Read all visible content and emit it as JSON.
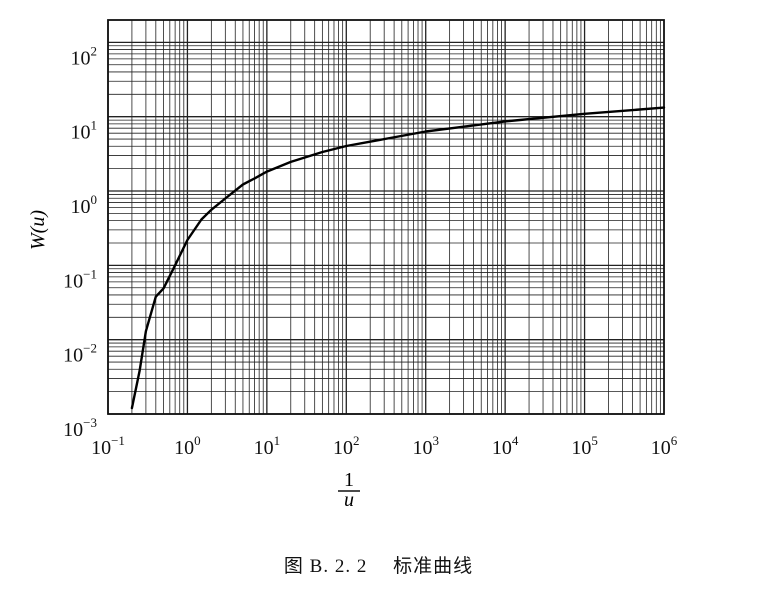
{
  "chart_data": {
    "type": "line",
    "x_scale": "log",
    "y_scale": "log",
    "xlim": [
      0.1,
      1000000
    ],
    "ylim": [
      0.001,
      200
    ],
    "grid": true,
    "xlabel_num": "1",
    "xlabel_den": "u",
    "ylabel": "W(u)",
    "x_ticks": [
      {
        "value": 0.1,
        "base": "10",
        "exp": "−1"
      },
      {
        "value": 1,
        "base": "10",
        "exp": "0"
      },
      {
        "value": 10,
        "base": "10",
        "exp": "1"
      },
      {
        "value": 100,
        "base": "10",
        "exp": "2"
      },
      {
        "value": 1000,
        "base": "10",
        "exp": "3"
      },
      {
        "value": 10000,
        "base": "10",
        "exp": "4"
      },
      {
        "value": 100000,
        "base": "10",
        "exp": "5"
      },
      {
        "value": 1000000,
        "base": "10",
        "exp": "6"
      }
    ],
    "y_ticks": [
      {
        "value": 0.001,
        "base": "10",
        "exp": "−3"
      },
      {
        "value": 0.01,
        "base": "10",
        "exp": "−2"
      },
      {
        "value": 0.1,
        "base": "10",
        "exp": "−1"
      },
      {
        "value": 1,
        "base": "10",
        "exp": "0"
      },
      {
        "value": 10,
        "base": "10",
        "exp": "1"
      },
      {
        "value": 100,
        "base": "10",
        "exp": "2"
      }
    ],
    "series": [
      {
        "x": [
          0.2,
          0.25,
          0.3,
          0.4,
          0.5,
          0.7,
          1,
          1.5,
          2,
          3,
          5,
          7,
          10,
          20,
          50,
          100,
          1000,
          10000,
          100000,
          1000000
        ],
        "y": [
          0.0012,
          0.0038,
          0.013,
          0.0379,
          0.0489,
          0.1,
          0.2194,
          0.414,
          0.5598,
          0.7942,
          1.2227,
          1.4775,
          1.8229,
          2.4679,
          3.3547,
          4.0379,
          6.3315,
          8.6332,
          10.9357,
          13.2383
        ]
      }
    ]
  },
  "caption": {
    "figure_number": "图 B. 2. 2",
    "title": "标准曲线"
  }
}
